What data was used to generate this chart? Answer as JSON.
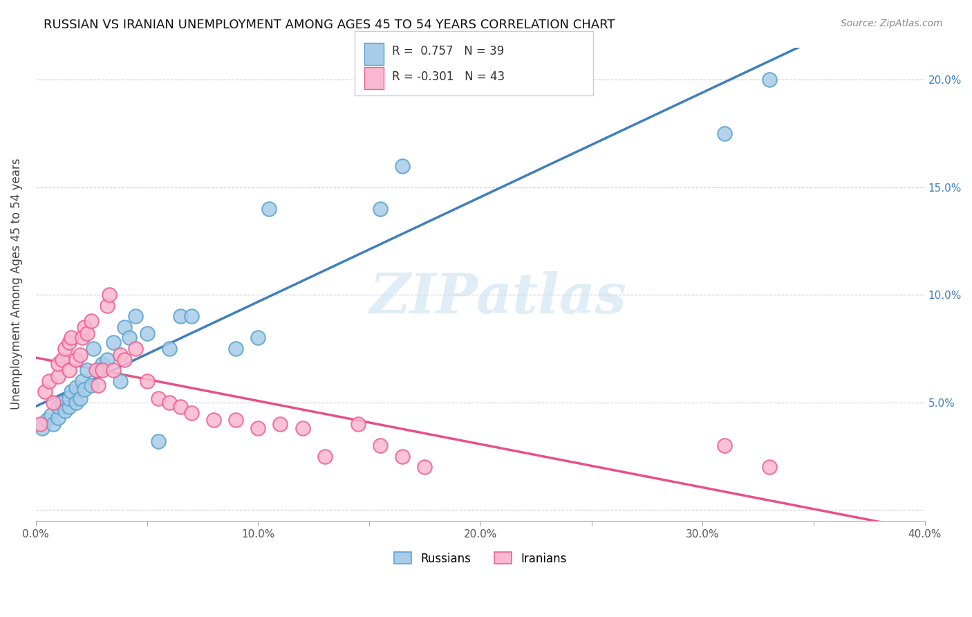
{
  "title": "RUSSIAN VS IRANIAN UNEMPLOYMENT AMONG AGES 45 TO 54 YEARS CORRELATION CHART",
  "source": "Source: ZipAtlas.com",
  "ylabel": "Unemployment Among Ages 45 to 54 years",
  "xlim": [
    0.0,
    0.4
  ],
  "ylim": [
    -0.005,
    0.215
  ],
  "xticks": [
    0.0,
    0.05,
    0.1,
    0.15,
    0.2,
    0.25,
    0.3,
    0.35,
    0.4
  ],
  "xticklabels": [
    "0.0%",
    "",
    "10.0%",
    "",
    "20.0%",
    "",
    "30.0%",
    "",
    "40.0%"
  ],
  "yticks_right": [
    0.0,
    0.05,
    0.1,
    0.15,
    0.2
  ],
  "yticklabels_right": [
    "",
    "5.0%",
    "10.0%",
    "15.0%",
    "20.0%"
  ],
  "russian_R": 0.757,
  "russian_N": 39,
  "iranian_R": -0.301,
  "iranian_N": 43,
  "russian_color": "#a8cde8",
  "russian_edge_color": "#5ba3d0",
  "iranian_color": "#f9b8d0",
  "iranian_edge_color": "#f06090",
  "russian_line_color": "#3d7fbf",
  "iranian_line_color": "#e8508a",
  "watermark": "ZIPatlas",
  "russian_x": [
    0.003,
    0.005,
    0.007,
    0.008,
    0.01,
    0.01,
    0.012,
    0.013,
    0.015,
    0.015,
    0.016,
    0.018,
    0.018,
    0.02,
    0.021,
    0.022,
    0.023,
    0.025,
    0.026,
    0.028,
    0.03,
    0.032,
    0.035,
    0.038,
    0.04,
    0.042,
    0.045,
    0.05,
    0.055,
    0.06,
    0.065,
    0.07,
    0.09,
    0.1,
    0.105,
    0.155,
    0.165,
    0.31,
    0.33
  ],
  "russian_y": [
    0.038,
    0.042,
    0.044,
    0.04,
    0.043,
    0.048,
    0.05,
    0.046,
    0.048,
    0.052,
    0.055,
    0.05,
    0.057,
    0.052,
    0.06,
    0.056,
    0.065,
    0.058,
    0.075,
    0.065,
    0.068,
    0.07,
    0.078,
    0.06,
    0.085,
    0.08,
    0.09,
    0.082,
    0.032,
    0.075,
    0.09,
    0.09,
    0.075,
    0.08,
    0.14,
    0.14,
    0.16,
    0.175,
    0.2
  ],
  "iranian_x": [
    0.002,
    0.004,
    0.006,
    0.008,
    0.01,
    0.01,
    0.012,
    0.013,
    0.015,
    0.015,
    0.016,
    0.018,
    0.02,
    0.021,
    0.022,
    0.023,
    0.025,
    0.027,
    0.028,
    0.03,
    0.032,
    0.033,
    0.035,
    0.038,
    0.04,
    0.045,
    0.05,
    0.055,
    0.06,
    0.065,
    0.07,
    0.08,
    0.09,
    0.1,
    0.11,
    0.12,
    0.13,
    0.145,
    0.155,
    0.165,
    0.175,
    0.31,
    0.33
  ],
  "iranian_y": [
    0.04,
    0.055,
    0.06,
    0.05,
    0.062,
    0.068,
    0.07,
    0.075,
    0.065,
    0.078,
    0.08,
    0.07,
    0.072,
    0.08,
    0.085,
    0.082,
    0.088,
    0.065,
    0.058,
    0.065,
    0.095,
    0.1,
    0.065,
    0.072,
    0.07,
    0.075,
    0.06,
    0.052,
    0.05,
    0.048,
    0.045,
    0.042,
    0.042,
    0.038,
    0.04,
    0.038,
    0.025,
    0.04,
    0.03,
    0.025,
    0.02,
    0.03,
    0.02
  ]
}
